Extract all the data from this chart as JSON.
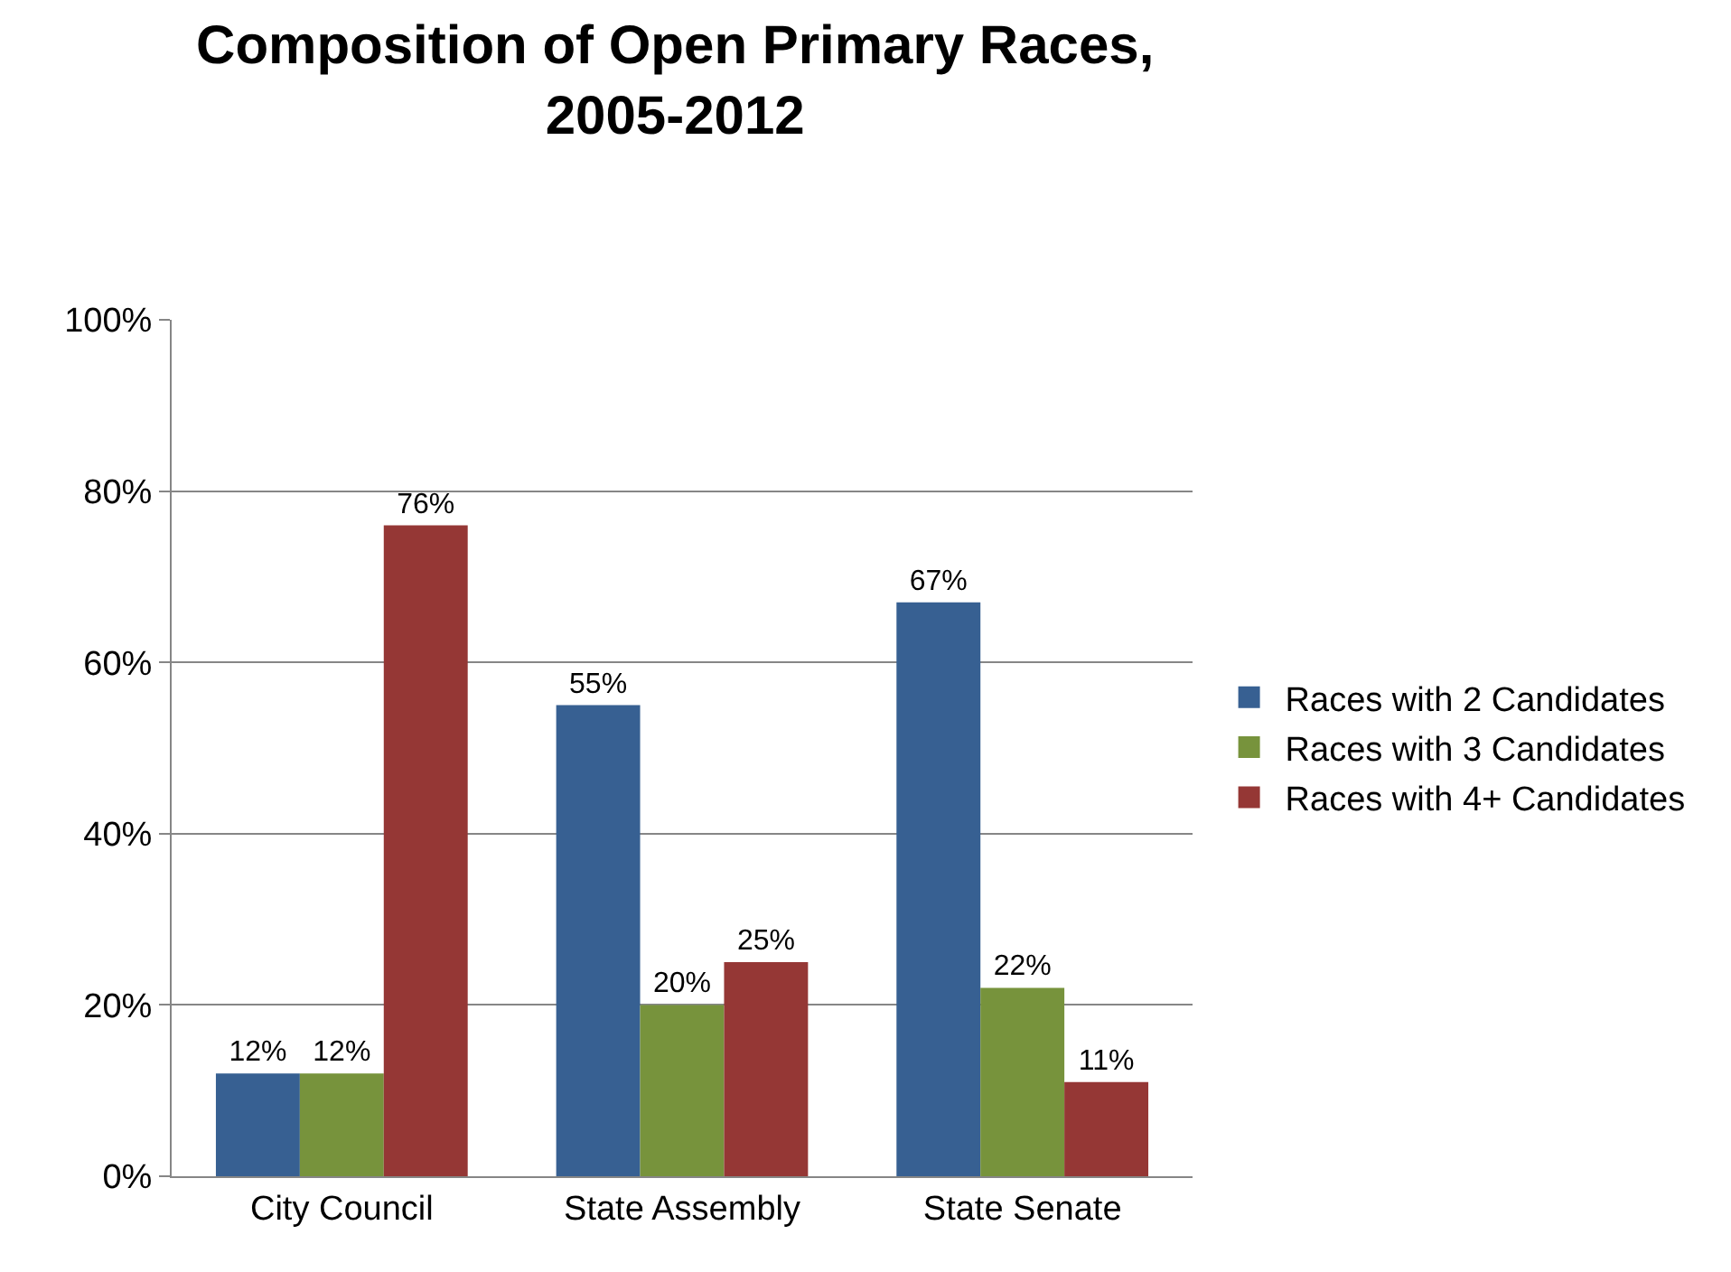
{
  "chart_data": {
    "type": "bar",
    "title": "Composition of Open Primary Races,\n2005-2012",
    "categories": [
      "City Council",
      "State Assembly",
      "State Senate"
    ],
    "series": [
      {
        "name": "Races with 2 Candidates",
        "color": "#376092",
        "values": [
          12,
          55,
          67
        ],
        "value_labels": [
          "12%",
          "55%",
          "67%"
        ]
      },
      {
        "name": "Races with 3 Candidates",
        "color": "#77933c",
        "values": [
          12,
          20,
          22
        ],
        "value_labels": [
          "12%",
          "20%",
          "22%"
        ]
      },
      {
        "name": "Races with 4+ Candidates",
        "color": "#953735",
        "values": [
          76,
          25,
          11
        ],
        "value_labels": [
          "76%",
          "25%",
          "11%"
        ]
      }
    ],
    "ylim": [
      0,
      100
    ],
    "yticks": [
      {
        "value": 0,
        "label": "0%"
      },
      {
        "value": 20,
        "label": "20%"
      },
      {
        "value": 40,
        "label": "40%"
      },
      {
        "value": 60,
        "label": "60%"
      },
      {
        "value": 80,
        "label": "80%"
      },
      {
        "value": 100,
        "label": "100%"
      }
    ],
    "grid": "y",
    "legend": "right"
  }
}
